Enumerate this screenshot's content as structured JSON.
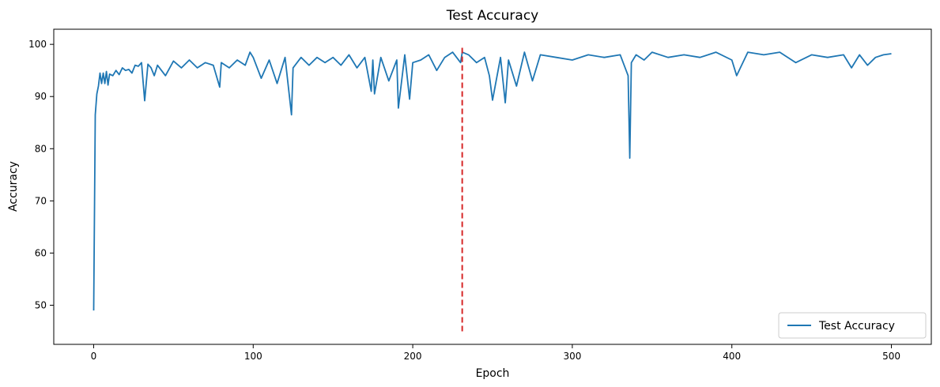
{
  "chart_data": {
    "type": "line",
    "title": "Test Accuracy",
    "xlabel": "Epoch",
    "ylabel": "Accuracy",
    "xlim": [
      -25,
      525
    ],
    "ylim": [
      42.5,
      102.9
    ],
    "xticks": [
      0,
      100,
      200,
      300,
      400,
      500
    ],
    "yticks": [
      50,
      60,
      70,
      80,
      90,
      100
    ],
    "grid": false,
    "legend_position": "bottom-right",
    "series": [
      {
        "name": "Test Accuracy",
        "color": "#1f77b4",
        "x": [
          0,
          1,
          2,
          3,
          4,
          5,
          6,
          7,
          8,
          9,
          10,
          12,
          14,
          16,
          18,
          20,
          22,
          24,
          26,
          28,
          30,
          32,
          34,
          36,
          38,
          40,
          45,
          50,
          55,
          60,
          65,
          70,
          75,
          79,
          80,
          85,
          90,
          95,
          98,
          100,
          105,
          110,
          115,
          120,
          124,
          125,
          130,
          135,
          140,
          145,
          150,
          155,
          160,
          165,
          170,
          174,
          175,
          176,
          180,
          185,
          190,
          191,
          195,
          198,
          200,
          205,
          210,
          215,
          220,
          225,
          230,
          231,
          235,
          240,
          245,
          248,
          250,
          255,
          258,
          260,
          265,
          270,
          275,
          280,
          290,
          300,
          310,
          320,
          330,
          335,
          336,
          337,
          340,
          345,
          350,
          360,
          370,
          380,
          390,
          400,
          403,
          410,
          420,
          430,
          440,
          450,
          460,
          470,
          475,
          480,
          485,
          490,
          495,
          500
        ],
        "values": [
          49.0,
          86.5,
          90.5,
          92.0,
          94.5,
          92.5,
          94.5,
          92.5,
          94.8,
          92.2,
          94.3,
          94.0,
          95.0,
          94.2,
          95.5,
          95.0,
          95.2,
          94.5,
          96.0,
          95.8,
          96.5,
          89.2,
          96.2,
          95.5,
          94.0,
          96.0,
          94.0,
          96.8,
          95.5,
          97.0,
          95.5,
          96.5,
          96.0,
          91.8,
          96.5,
          95.5,
          97.0,
          96.0,
          98.5,
          97.5,
          93.5,
          97.0,
          92.5,
          97.5,
          86.5,
          95.5,
          97.5,
          96.0,
          97.5,
          96.5,
          97.5,
          96.0,
          98.0,
          95.5,
          97.5,
          91.0,
          97.0,
          90.5,
          97.5,
          93.0,
          97.0,
          87.8,
          98.0,
          89.5,
          96.5,
          97.0,
          98.0,
          95.0,
          97.5,
          98.5,
          96.5,
          98.5,
          98.0,
          96.5,
          97.5,
          94.0,
          89.3,
          97.5,
          88.8,
          97.0,
          92.0,
          98.5,
          93.0,
          98.0,
          97.5,
          97.0,
          98.0,
          97.5,
          98.0,
          94.0,
          78.2,
          96.5,
          98.0,
          97.0,
          98.5,
          97.5,
          98.0,
          97.5,
          98.5,
          97.0,
          94.0,
          98.5,
          98.0,
          98.5,
          96.5,
          98.0,
          97.5,
          98.0,
          95.5,
          98.0,
          96.0,
          97.5,
          98.0,
          98.2
        ]
      }
    ],
    "vline": {
      "x": 231,
      "ymin": 45.0,
      "ymax": 99.8,
      "color": "#d62728",
      "style": "dashed"
    }
  }
}
